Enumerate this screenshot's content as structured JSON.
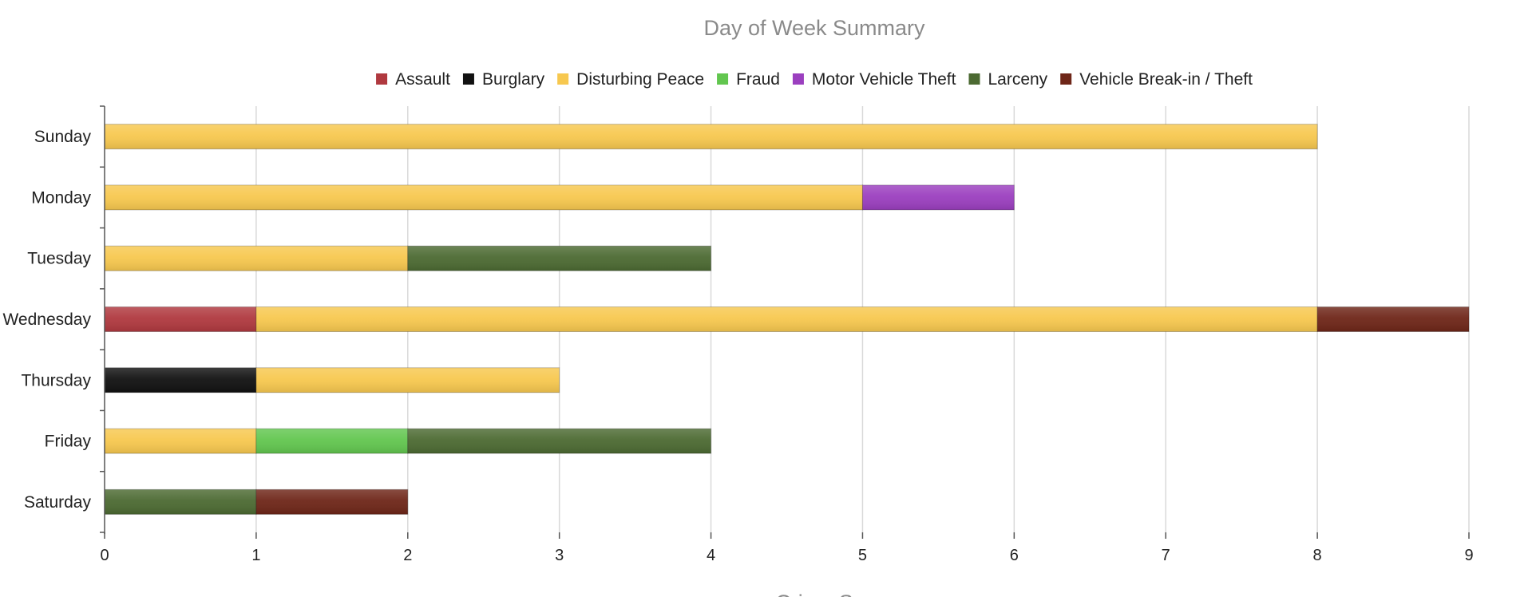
{
  "chart_data": {
    "type": "bar",
    "orientation": "horizontal",
    "stacked": true,
    "title": "Day of Week Summary",
    "xlabel": "Crime S",
    "ylabel": "",
    "xlim": [
      0,
      9
    ],
    "x_ticks": [
      "0",
      "1",
      "2",
      "3",
      "4",
      "5",
      "6",
      "7",
      "8",
      "9"
    ],
    "grid": true,
    "legend_position": "top",
    "categories": [
      "Sunday",
      "Monday",
      "Tuesday",
      "Wednesday",
      "Thursday",
      "Friday",
      "Saturday"
    ],
    "series": [
      {
        "name": "Assault",
        "color": "#b0393f",
        "values": [
          0,
          0,
          0,
          1,
          0,
          0,
          0
        ]
      },
      {
        "name": "Burglary",
        "color": "#111111",
        "values": [
          0,
          0,
          0,
          0,
          1,
          0,
          0
        ]
      },
      {
        "name": "Disturbing Peace",
        "color": "#f7c84f",
        "values": [
          8,
          5,
          2,
          7,
          2,
          1,
          0
        ]
      },
      {
        "name": "Fraud",
        "color": "#62c64f",
        "values": [
          0,
          0,
          0,
          0,
          0,
          1,
          0
        ]
      },
      {
        "name": "Motor Vehicle Theft",
        "color": "#9b3fbf",
        "values": [
          0,
          1,
          0,
          0,
          0,
          0,
          0
        ]
      },
      {
        "name": "Larceny",
        "color": "#4c6a32",
        "values": [
          0,
          0,
          2,
          0,
          0,
          2,
          1
        ]
      },
      {
        "name": "Vehicle Break-in / Theft",
        "color": "#6e2618",
        "values": [
          0,
          0,
          0,
          1,
          0,
          0,
          1
        ]
      }
    ]
  }
}
